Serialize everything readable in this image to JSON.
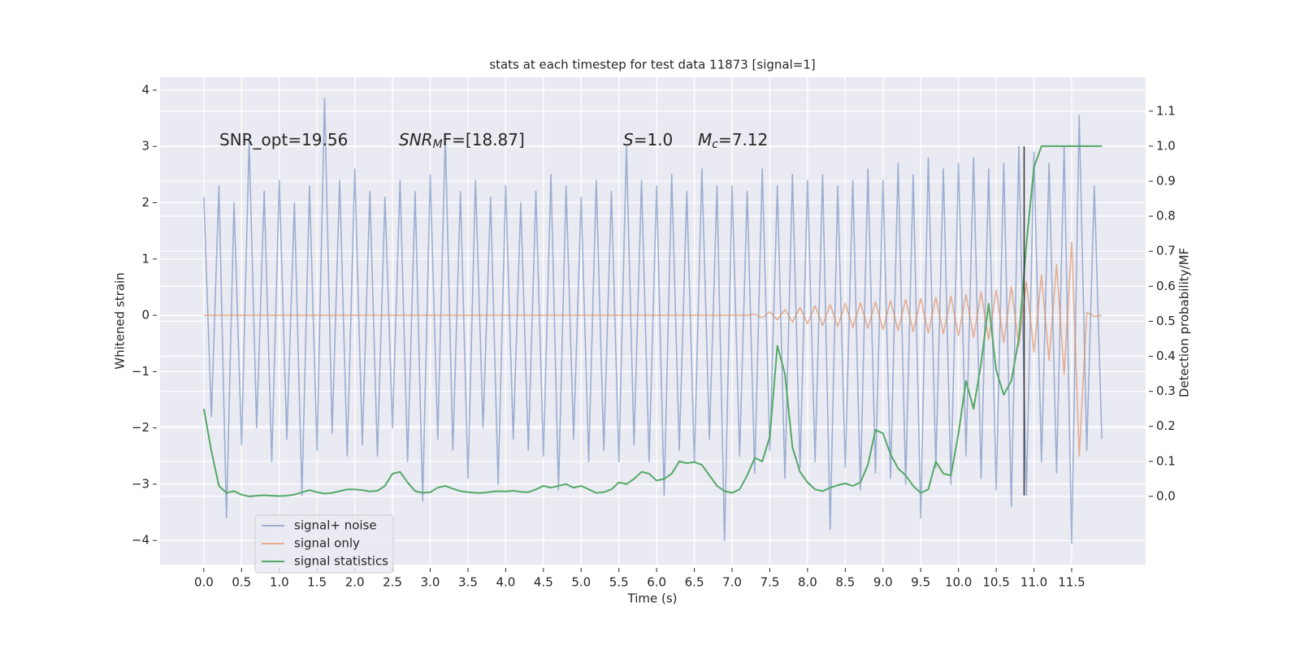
{
  "chart_data": {
    "type": "line",
    "title": "stats at each timestep for test data 11873 [signal=1]",
    "x_label": "Time (s)",
    "y_label": "Whitened strain",
    "y2_label": "Detection probability/MF",
    "annotations": [
      {
        "text": "SNR_opt=19.56"
      },
      {
        "main": "SNR",
        "sub": "M",
        "rest": "F=[18.87]"
      },
      {
        "main": "S",
        "rest": "=1.0"
      },
      {
        "main": "M",
        "sub": "c",
        "rest": "=7.12"
      }
    ],
    "vline": {
      "x": 10.87,
      "ymin": -3.2,
      "ymax": 3
    },
    "xlim": [
      -0.58,
      12.48
    ],
    "ylim": [
      -4.43,
      4.23
    ],
    "y2lim": [
      -0.195,
      1.197
    ],
    "grid": true,
    "legend": "lower left",
    "xticks": [
      {
        "value": 0,
        "label": "0.0"
      },
      {
        "value": 0.5,
        "label": "0.5"
      },
      {
        "value": 1,
        "label": "1.0"
      },
      {
        "value": 1.5,
        "label": "1.5"
      },
      {
        "value": 2,
        "label": "2.0"
      },
      {
        "value": 2.5,
        "label": "2.5"
      },
      {
        "value": 3,
        "label": "3.0"
      },
      {
        "value": 3.5,
        "label": "3.5"
      },
      {
        "value": 4,
        "label": "4.0"
      },
      {
        "value": 4.5,
        "label": "4.5"
      },
      {
        "value": 5,
        "label": "5.0"
      },
      {
        "value": 5.5,
        "label": "5.5"
      },
      {
        "value": 6,
        "label": "6.0"
      },
      {
        "value": 6.5,
        "label": "6.5"
      },
      {
        "value": 7,
        "label": "7.0"
      },
      {
        "value": 7.5,
        "label": "7.5"
      },
      {
        "value": 8,
        "label": "8.0"
      },
      {
        "value": 8.5,
        "label": "8.5"
      },
      {
        "value": 9,
        "label": "9.0"
      },
      {
        "value": 9.5,
        "label": "9.5"
      },
      {
        "value": 10,
        "label": "10.0"
      },
      {
        "value": 10.5,
        "label": "10.5"
      },
      {
        "value": 11,
        "label": "11.0"
      },
      {
        "value": 11.5,
        "label": "11.5"
      }
    ],
    "yticks": [
      {
        "value": -4,
        "label": "−4"
      },
      {
        "value": -3,
        "label": "−3"
      },
      {
        "value": -2,
        "label": "−2"
      },
      {
        "value": -1,
        "label": "−1"
      },
      0,
      1,
      2,
      3,
      4
    ],
    "y2ticks": [
      {
        "value": 0,
        "label": "0.0"
      },
      {
        "value": 0.1,
        "label": "0.1"
      },
      {
        "value": 0.2,
        "label": "0.2"
      },
      {
        "value": 0.3,
        "label": "0.3"
      },
      {
        "value": 0.4,
        "label": "0.4"
      },
      {
        "value": 0.5,
        "label": "0.5"
      },
      {
        "value": 0.6,
        "label": "0.6"
      },
      {
        "value": 0.7,
        "label": "0.7"
      },
      {
        "value": 0.8,
        "label": "0.8"
      },
      {
        "value": 0.9,
        "label": "0.9"
      },
      {
        "value": 1,
        "label": "1.0"
      },
      {
        "value": 1.1,
        "label": "1.1"
      }
    ],
    "x": [
      0,
      0.1,
      0.2,
      0.3,
      0.4,
      0.5,
      0.6,
      0.7,
      0.8,
      0.9,
      1,
      1.1,
      1.2,
      1.3,
      1.4,
      1.5,
      1.6,
      1.7,
      1.8,
      1.9,
      2,
      2.1,
      2.2,
      2.3,
      2.4,
      2.5,
      2.6,
      2.7,
      2.8,
      2.9,
      3,
      3.1,
      3.2,
      3.3,
      3.4,
      3.5,
      3.6,
      3.7,
      3.8,
      3.9,
      4,
      4.1,
      4.2,
      4.3,
      4.4,
      4.5,
      4.6,
      4.7,
      4.8,
      4.9,
      5,
      5.1,
      5.2,
      5.3,
      5.4,
      5.5,
      5.6,
      5.7,
      5.8,
      5.9,
      6,
      6.1,
      6.2,
      6.3,
      6.4,
      6.5,
      6.6,
      6.7,
      6.8,
      6.9,
      7,
      7.1,
      7.2,
      7.3,
      7.4,
      7.5,
      7.6,
      7.7,
      7.8,
      7.9,
      8,
      8.1,
      8.2,
      8.3,
      8.4,
      8.5,
      8.6,
      8.7,
      8.8,
      8.9,
      9,
      9.1,
      9.2,
      9.3,
      9.4,
      9.5,
      9.6,
      9.7,
      9.8,
      9.9,
      10,
      10.1,
      10.2,
      10.3,
      10.4,
      10.5,
      10.6,
      10.7,
      10.8,
      10.9,
      11,
      11.1,
      11.2,
      11.3,
      11.4,
      11.5,
      11.6,
      11.7,
      11.8,
      11.9
    ],
    "series": [
      {
        "name": "signal+ noise",
        "color": "#4c72b0",
        "opacity": 0.5,
        "values": [
          2.1,
          -1.8,
          2.3,
          -3.6,
          2.0,
          -2.3,
          3.1,
          -2.0,
          2.2,
          -2.6,
          2.4,
          -2.2,
          2.0,
          -3.2,
          2.3,
          -2.4,
          3.85,
          -2.1,
          2.4,
          -2.5,
          2.6,
          -2.3,
          2.2,
          -2.5,
          2.1,
          -2.0,
          2.4,
          -2.6,
          2.2,
          -3.3,
          2.5,
          -2.2,
          3.2,
          -2.4,
          2.2,
          -2.9,
          2.4,
          -2.0,
          2.1,
          -3.0,
          2.3,
          -2.2,
          2.0,
          -2.4,
          2.2,
          -2.5,
          2.5,
          -3.1,
          2.3,
          -2.2,
          2.1,
          -2.6,
          2.4,
          -2.4,
          2.2,
          -2.6,
          3.0,
          -2.3,
          2.4,
          -2.6,
          2.3,
          -3.2,
          2.5,
          -2.4,
          2.2,
          -2.6,
          2.6,
          -2.2,
          2.3,
          -4.0,
          2.3,
          -2.5,
          2.2,
          -2.8,
          2.6,
          -2.4,
          2.3,
          -2.9,
          2.5,
          -2.7,
          2.4,
          -2.6,
          2.5,
          -3.8,
          2.3,
          -2.7,
          2.4,
          -3.1,
          2.6,
          -2.8,
          2.4,
          -2.9,
          2.7,
          -3.0,
          2.5,
          -3.6,
          2.8,
          -2.7,
          2.6,
          -3.0,
          2.7,
          -2.5,
          2.8,
          -2.9,
          2.6,
          -3.1,
          2.7,
          -3.4,
          3.0,
          -3.2,
          2.9,
          -2.6,
          2.7,
          -2.8,
          3.0,
          -4.05,
          3.55,
          -2.4,
          2.3,
          -2.2
        ]
      },
      {
        "name": "signal only",
        "color": "#dd8452",
        "opacity": 0.6,
        "values": [
          0,
          0,
          0,
          0,
          0,
          0,
          0,
          0,
          0,
          0,
          0,
          0,
          0,
          0,
          0,
          0,
          0,
          0,
          0,
          0,
          0,
          0,
          0,
          0,
          0,
          0,
          0,
          0,
          0,
          0,
          0,
          0,
          0,
          0,
          0,
          0,
          0,
          0,
          0,
          0,
          0,
          0,
          0,
          0,
          0,
          0,
          0,
          0,
          0,
          0,
          0,
          0,
          0,
          0,
          0,
          0,
          0,
          0,
          0,
          0,
          0,
          0,
          0,
          0,
          0,
          0,
          0,
          0,
          0,
          0,
          0,
          0,
          0,
          0.02,
          -0.04,
          0.06,
          -0.08,
          0.1,
          -0.12,
          0.14,
          -0.15,
          0.17,
          -0.18,
          0.19,
          -0.2,
          0.21,
          -0.22,
          0.22,
          -0.23,
          0.24,
          -0.25,
          0.26,
          -0.27,
          0.28,
          -0.29,
          0.3,
          -0.31,
          0.32,
          -0.33,
          0.34,
          -0.36,
          0.37,
          -0.39,
          0.41,
          -0.43,
          0.45,
          -0.48,
          0.51,
          -0.55,
          0.6,
          -0.65,
          0.72,
          -0.8,
          0.9,
          -1.05,
          1.3,
          -2.5,
          0.05,
          -0.02,
          0
        ]
      },
      {
        "name": "signal statistics",
        "color": "#55a868",
        "opacity": 1,
        "axis": "y2",
        "values": [
          0.25,
          0.13,
          0.03,
          0.01,
          0.015,
          0.005,
          0,
          0.002,
          0.003,
          0.002,
          0.001,
          0.002,
          0.005,
          0.012,
          0.018,
          0.012,
          0.008,
          0.01,
          0.015,
          0.02,
          0.02,
          0.018,
          0.014,
          0.016,
          0.03,
          0.065,
          0.07,
          0.04,
          0.015,
          0.01,
          0.012,
          0.025,
          0.03,
          0.022,
          0.015,
          0.012,
          0.01,
          0.01,
          0.013,
          0.015,
          0.014,
          0.016,
          0.013,
          0.012,
          0.02,
          0.03,
          0.025,
          0.03,
          0.035,
          0.025,
          0.03,
          0.02,
          0.01,
          0.012,
          0.02,
          0.04,
          0.035,
          0.05,
          0.07,
          0.065,
          0.045,
          0.05,
          0.065,
          0.1,
          0.095,
          0.098,
          0.09,
          0.06,
          0.03,
          0.015,
          0.01,
          0.02,
          0.06,
          0.11,
          0.1,
          0.17,
          0.43,
          0.35,
          0.14,
          0.07,
          0.04,
          0.02,
          0.015,
          0.025,
          0.032,
          0.037,
          0.03,
          0.04,
          0.09,
          0.19,
          0.18,
          0.12,
          0.08,
          0.06,
          0.03,
          0.01,
          0.02,
          0.1,
          0.065,
          0.06,
          0.18,
          0.33,
          0.25,
          0.38,
          0.55,
          0.36,
          0.29,
          0.33,
          0.45,
          0.72,
          0.94,
          1,
          1,
          1,
          1,
          1,
          1,
          1,
          1,
          1
        ]
      }
    ]
  }
}
